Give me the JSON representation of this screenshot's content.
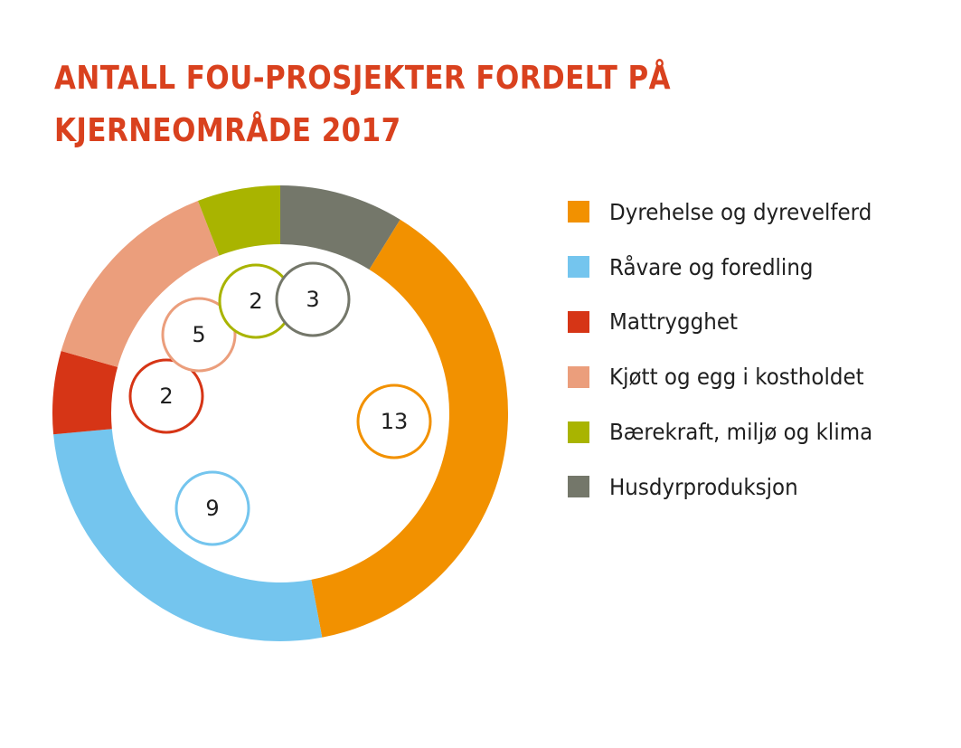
{
  "title": {
    "line1": "ANTALL FOU-PROSJEKTER FORDELT PÅ",
    "line2": "KJERNEOMRÅDE 2017"
  },
  "chart_data": {
    "type": "pie",
    "title": "ANTALL FOU-PROSJEKTER FORDELT PÅ KJERNEOMRÅDE 2017",
    "donut": true,
    "legend_position": "right",
    "categories": [
      "Dyrehelse og dyrevelferd",
      "Råvare og foredling",
      "Mattrygghet",
      "Kjøtt og egg i kostholdet",
      "Bærekraft, miljø og klima",
      "Husdyrproduksjon"
    ],
    "values": [
      13,
      9,
      2,
      5,
      2,
      3
    ],
    "colors": [
      "#f29100",
      "#74c5ee",
      "#d63516",
      "#eb9e7c",
      "#a9b400",
      "#74776a"
    ]
  },
  "legend": {
    "items": [
      {
        "label": "Dyrehelse og dyrevelferd",
        "color": "#f29100"
      },
      {
        "label": "Råvare og foredling",
        "color": "#74c5ee"
      },
      {
        "label": "Mattrygghet",
        "color": "#d63516"
      },
      {
        "label": "Kjøtt og egg i kostholdet",
        "color": "#eb9e7c"
      },
      {
        "label": "Bærekraft, miljø og klima",
        "color": "#a9b400"
      },
      {
        "label": "Husdyrproduksjon",
        "color": "#74776a"
      }
    ]
  }
}
